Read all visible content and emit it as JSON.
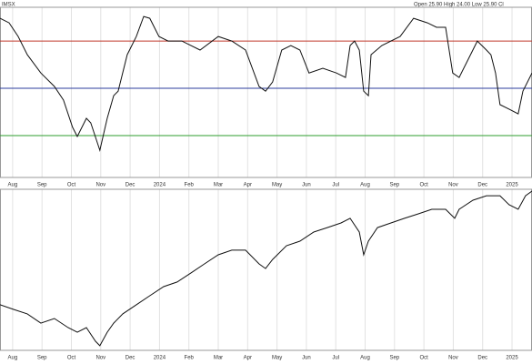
{
  "chart_data": [
    {
      "type": "line",
      "annotations": [
        "IMSX",
        "Open 25.90  High 24.00  Low 25.90  Cl"
      ],
      "xlim": [
        -0.43,
        17.68
      ],
      "xticks": [
        {
          "value": 0,
          "label": "Aug"
        },
        {
          "value": 1,
          "label": "Sep"
        },
        {
          "value": 2,
          "label": "Oct"
        },
        {
          "value": 3,
          "label": "Nov"
        },
        {
          "value": 4,
          "label": "Dec"
        },
        {
          "value": 5,
          "label": "2024"
        },
        {
          "value": 6,
          "label": "Feb"
        },
        {
          "value": 7,
          "label": "Mar"
        },
        {
          "value": 8,
          "label": "Apr"
        },
        {
          "value": 9,
          "label": "May"
        },
        {
          "value": 10,
          "label": "Jun"
        },
        {
          "value": 11,
          "label": "Jul"
        },
        {
          "value": 12,
          "label": "Aug"
        },
        {
          "value": 13,
          "label": "Sep"
        },
        {
          "value": 14,
          "label": "Oct"
        },
        {
          "value": 15,
          "label": "Nov"
        },
        {
          "value": 16,
          "label": "Dec"
        },
        {
          "value": 17,
          "label": "2025"
        }
      ],
      "ylim": [
        12.3,
        83.5
      ],
      "levels": [
        {
          "value": 70,
          "color": "#c0392b"
        },
        {
          "value": 50,
          "color": "#2c3e9e"
        },
        {
          "value": 30,
          "color": "#2e9e2e"
        }
      ],
      "grid": true,
      "color": "#111111",
      "x": [
        -0.43,
        -0.12,
        0.19,
        0.5,
        0.96,
        1.42,
        1.73,
        2.04,
        2.2,
        2.51,
        2.66,
        2.97,
        3.22,
        3.44,
        3.59,
        3.9,
        4.21,
        4.46,
        4.67,
        4.98,
        5.29,
        5.76,
        6.38,
        7.0,
        7.46,
        7.93,
        8.39,
        8.61,
        8.85,
        9.16,
        9.47,
        9.78,
        10.09,
        10.56,
        11.02,
        11.33,
        11.49,
        11.64,
        11.8,
        11.95,
        12.11,
        12.2,
        12.57,
        13.19,
        13.65,
        14.12,
        14.43,
        14.74,
        14.98,
        15.2,
        15.51,
        15.82,
        16.13,
        16.28,
        16.44,
        16.59,
        16.9,
        17.21,
        17.37,
        17.68
      ],
      "values": [
        79.6,
        77.7,
        71.9,
        64.2,
        56.5,
        50.8,
        45,
        33.5,
        29.6,
        37.3,
        35.4,
        23.8,
        37.3,
        46.9,
        48.8,
        64.2,
        71.9,
        80.4,
        79.6,
        71.9,
        70,
        70,
        66.2,
        71.9,
        70,
        66.2,
        50.8,
        48.8,
        52.7,
        66.2,
        68.1,
        66.2,
        56.5,
        58.5,
        56.5,
        54.6,
        68.1,
        70,
        66.2,
        48.8,
        46.9,
        64.2,
        68.1,
        71.9,
        79.6,
        77.7,
        75.8,
        75.8,
        56.5,
        54.6,
        62.3,
        70,
        66.2,
        64.2,
        56.5,
        43.1,
        41.2,
        39.2,
        48.8,
        56.5
      ]
    },
    {
      "type": "line",
      "xlim": [
        -0.43,
        17.68
      ],
      "xticks": [
        {
          "value": 0,
          "label": "Aug"
        },
        {
          "value": 1,
          "label": "Sep"
        },
        {
          "value": 2,
          "label": "Oct"
        },
        {
          "value": 3,
          "label": "Nov"
        },
        {
          "value": 4,
          "label": "Dec"
        },
        {
          "value": 5,
          "label": "2024"
        },
        {
          "value": 6,
          "label": "Feb"
        },
        {
          "value": 7,
          "label": "Mar"
        },
        {
          "value": 8,
          "label": "Apr"
        },
        {
          "value": 9,
          "label": "May"
        },
        {
          "value": 10,
          "label": "Jun"
        },
        {
          "value": 11,
          "label": "Jul"
        },
        {
          "value": 12,
          "label": "Aug"
        },
        {
          "value": 13,
          "label": "Sep"
        },
        {
          "value": 14,
          "label": "Oct"
        },
        {
          "value": 15,
          "label": "Nov"
        },
        {
          "value": 16,
          "label": "Dec"
        },
        {
          "value": 17,
          "label": "2025"
        }
      ],
      "ylim": [
        0,
        100
      ],
      "grid": true,
      "color": "#111111",
      "x": [
        -0.43,
        0.03,
        0.5,
        0.96,
        1.42,
        1.89,
        2.2,
        2.51,
        2.82,
        2.97,
        3.22,
        3.44,
        3.75,
        4.21,
        4.67,
        5.14,
        5.6,
        6.07,
        6.53,
        7.0,
        7.46,
        7.93,
        8.39,
        8.61,
        8.85,
        9.32,
        9.78,
        10.25,
        10.71,
        11.18,
        11.49,
        11.8,
        11.95,
        12.11,
        12.42,
        12.88,
        13.34,
        13.81,
        14.27,
        14.74,
        15.05,
        15.2,
        15.67,
        16.13,
        16.59,
        16.9,
        17.21,
        17.46,
        17.68
      ],
      "values": [
        28.6,
        25.7,
        22.9,
        17.1,
        20,
        14.3,
        11.4,
        14.3,
        5.7,
        2.9,
        11.4,
        17.1,
        22.9,
        28.6,
        34.3,
        40,
        42.9,
        48.6,
        54.3,
        60,
        62.9,
        62.9,
        54.3,
        51.4,
        57.1,
        65.7,
        68.6,
        74.3,
        77.1,
        80,
        82.9,
        74.3,
        60,
        68.6,
        77.1,
        80,
        82.9,
        85.7,
        88.6,
        88.6,
        82.9,
        88.6,
        94.3,
        97.1,
        97.1,
        91.4,
        88.6,
        97.1,
        100
      ]
    }
  ]
}
